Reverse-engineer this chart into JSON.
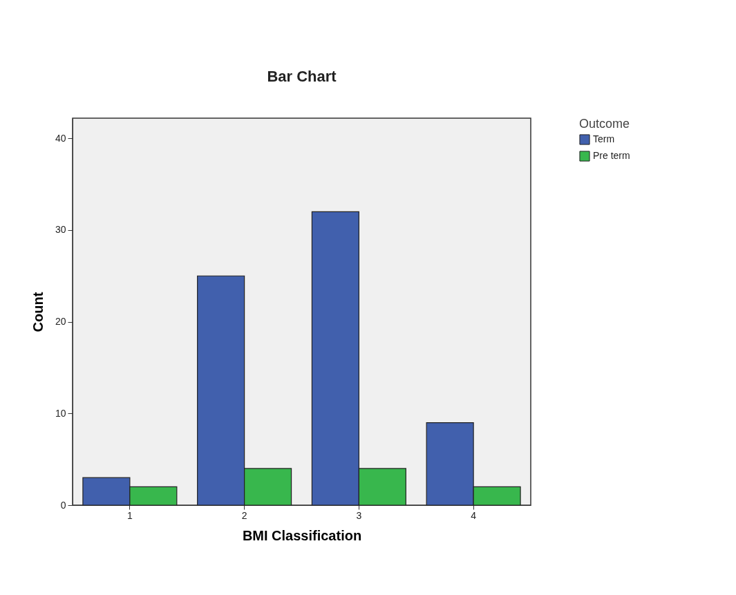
{
  "chart_data": {
    "type": "bar",
    "title": "Bar Chart",
    "xlabel": "BMI Classification",
    "ylabel": "Count",
    "legend_title": "Outcome",
    "categories": [
      "1",
      "2",
      "3",
      "4"
    ],
    "series": [
      {
        "name": "Term",
        "color": "#4160ad",
        "values": [
          3,
          25,
          32,
          9
        ]
      },
      {
        "name": "Pre term",
        "color": "#38b74d",
        "values": [
          2,
          4,
          4,
          2
        ]
      }
    ],
    "ylim": [
      0,
      42.2
    ],
    "yticks": [
      0,
      10,
      20,
      30,
      40
    ],
    "grid": false,
    "legend": "top right"
  }
}
